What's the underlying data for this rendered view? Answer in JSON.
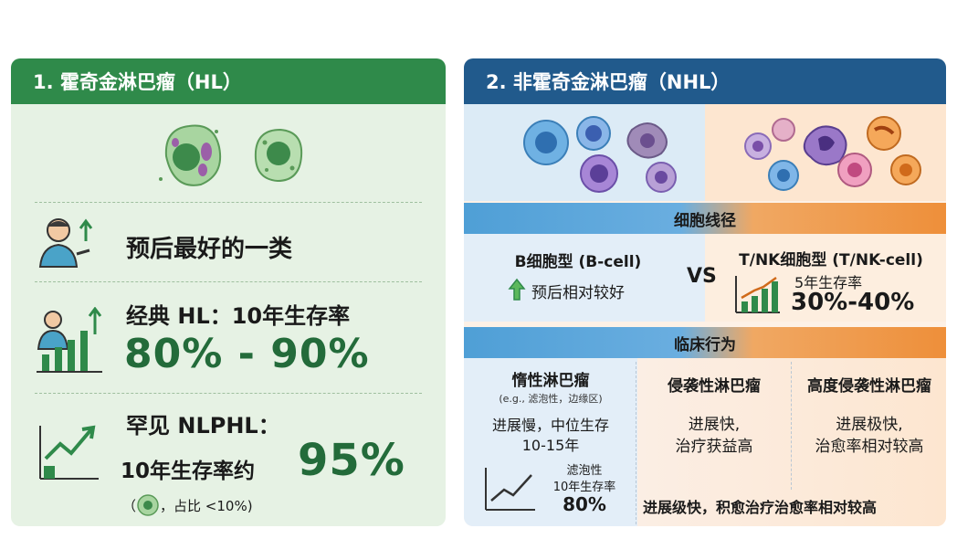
{
  "hl": {
    "title": "1. 霍奇金淋巴瘤（HL）",
    "prognosis": "预后最好的一类",
    "classic_label": "经典 HL：10年生存率",
    "classic_value": "80% - 90%",
    "rare_label": "罕见 NLPHL：",
    "rare_rate_label": "10年生存率约",
    "rare_rate_value": "95%",
    "rare_note_open": "（",
    "rare_note": "，占比 <10%)",
    "icons": [
      "hodgkin-cell-icon",
      "person-growth-icon",
      "bar-chart-up-icon",
      "trend-line-up-icon"
    ],
    "accent": "#2f8a4a"
  },
  "nhl": {
    "title": "2. 非霍奇金淋巴瘤（NHL）",
    "lineage_band": "细胞线径",
    "bcell_label": "B细胞型 (B-cell)",
    "bcell_prognosis": "预后相对较好",
    "vs": "VS",
    "tnk_label": "T/NK细胞型 (T/NK-cell)",
    "tnk_survival_label": "5年生存率",
    "tnk_survival_value": "30%-40%",
    "behavior_band": "临床行为",
    "indolent": {
      "title": "惰性淋巴瘤",
      "subtitle": "(e.g., 滤泡性，边缘区)",
      "desc_1": "进展慢，中位生存",
      "desc_2": "10-15年",
      "follicular_1": "滤泡性",
      "follicular_2": "10年生存率",
      "follicular_value": "80%"
    },
    "aggressive": {
      "title": "侵袭性淋巴瘤",
      "desc_1": "进展快,",
      "desc_2": "治疗获益高"
    },
    "highly_aggressive": {
      "title": "高度侵袭性淋巴瘤",
      "desc_1": "进展极快,",
      "desc_2": "治愈率相对较高"
    },
    "footer": "进展级快，积愈治疗治愈率相对较高",
    "accent": "#215a8c",
    "warm_accent": "#ee8f3a"
  }
}
